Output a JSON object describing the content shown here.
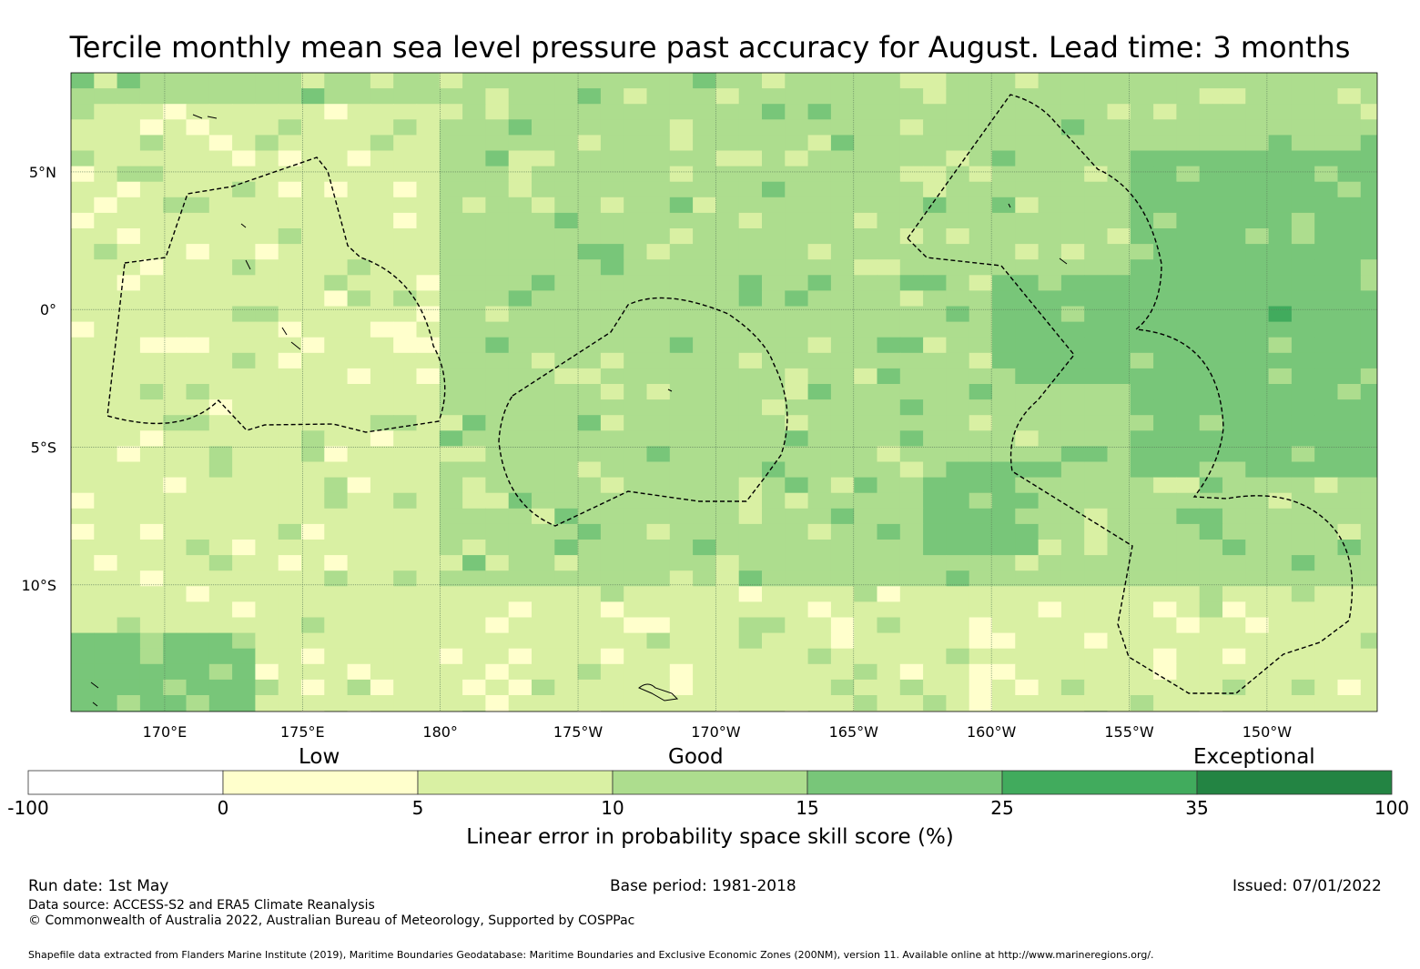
{
  "title": "Tercile monthly mean sea level pressure past accuracy for August. Lead time: 3 months",
  "map": {
    "lon_labels": [
      "170°E",
      "175°E",
      "180°",
      "175°W",
      "170°W",
      "165°W",
      "160°W",
      "155°W",
      "150°W"
    ],
    "lon_values": [
      170,
      175,
      180,
      185,
      190,
      195,
      200,
      205,
      210
    ],
    "lat_labels": [
      "5°N",
      "0°",
      "5°S",
      "10°S"
    ],
    "lat_values": [
      5,
      0,
      -5,
      -10
    ],
    "lon_range": [
      166.6,
      214.0
    ],
    "lat_range": [
      -14.6,
      8.6
    ],
    "grid_resolution_deg": 0.83,
    "dominant_color_by_region": {
      "west_tropics": "#d9f0a3",
      "central": "#addd8e",
      "east_equatorial": "#78c679",
      "southern_band": "#d9f0a3"
    },
    "boundaries": "dashed EEZ outlines"
  },
  "legend": {
    "categories": [
      "Low",
      "Good",
      "Exceptional"
    ],
    "ticks": [
      "-100",
      "0",
      "5",
      "10",
      "15",
      "25",
      "35",
      "100"
    ],
    "colors": [
      "#ffffff",
      "#ffffcc",
      "#d9f0a3",
      "#addd8e",
      "#78c679",
      "#41ab5d",
      "#238443"
    ],
    "title": "Linear error in probability space skill score (%)"
  },
  "footer": {
    "run_date": "Run date: 1st May",
    "base_period": "Base period: 1981-2018",
    "issued": "Issued: 07/01/2022",
    "data_source": "Data source: ACCESS-S2 and ERA5 Climate Reanalysis",
    "copyright": "© Commonwealth of Australia 2022, Australian Bureau of Meteorology, Supported by COSPPac",
    "shapefile": "Shapefile data extracted from Flanders Marine Institute (2019), Maritime Boundaries Geodatabase: Maritime Boundaries and Exclusive Economic Zones (200NM), version 11. Available online at http://www.marineregions.org/."
  }
}
